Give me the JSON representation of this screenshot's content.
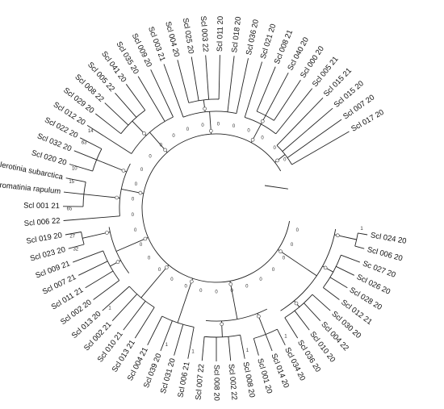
{
  "tree": {
    "tips": [
      {
        "label": "Scl 024 20",
        "support": "1"
      },
      {
        "label": "Scl 006 20",
        "support": ""
      },
      {
        "label": "Sc 027 20",
        "support": ""
      },
      {
        "label": "Scl 026 20",
        "support": ""
      },
      {
        "label": "Scl 028 20",
        "support": ""
      },
      {
        "label": "Scl 012 21",
        "support": ""
      },
      {
        "label": "Scl 030 20",
        "support": ""
      },
      {
        "label": "Scl 004 22",
        "support": ""
      },
      {
        "label": "Scl 010 20",
        "support": ""
      },
      {
        "label": "Scl 036 20",
        "support": ""
      },
      {
        "label": "Scl 034 20",
        "support": "1"
      },
      {
        "label": "Scl 014 20",
        "support": ""
      },
      {
        "label": "Scl 001 20",
        "support": ""
      },
      {
        "label": "Scl 008 20",
        "support": "1"
      },
      {
        "label": "Scl 002 22",
        "support": ""
      },
      {
        "label": "Scl 008 20",
        "support": ""
      },
      {
        "label": "Scl 007 22",
        "support": ""
      },
      {
        "label": "Scl 006 21",
        "support": "1"
      },
      {
        "label": "Scl 031 20",
        "support": ""
      },
      {
        "label": "Scl 039 20",
        "support": "1"
      },
      {
        "label": "Scl 004 21",
        "support": ""
      },
      {
        "label": "Scl 013 21",
        "support": ""
      },
      {
        "label": "Scl 010 21",
        "support": ""
      },
      {
        "label": "Scl 002 21",
        "support": ""
      },
      {
        "label": "Scl 013 20",
        "support": "1"
      },
      {
        "label": "Scl 002 20",
        "support": ""
      },
      {
        "label": "Scl 011 21",
        "support": ""
      },
      {
        "label": "Scl 007 21",
        "support": ""
      },
      {
        "label": "Scl 009 21",
        "support": ""
      },
      {
        "label": "Scl 023 20",
        "support": "32"
      },
      {
        "label": "Scl 019 20",
        "support": "27"
      },
      {
        "label": "Scl 006 22",
        "support": ""
      },
      {
        "label": "Scl 001 21",
        "support": "65"
      },
      {
        "label": "Stromatinia rapulum",
        "support": ""
      },
      {
        "label": "Sclerotinia subarctica",
        "support": "15"
      },
      {
        "label": "Scl 020 20",
        "support": "10"
      },
      {
        "label": "Scl 032 20",
        "support": ""
      },
      {
        "label": "Scl 022 20",
        "support": "63"
      },
      {
        "label": "Scl 012 20",
        "support": "14"
      },
      {
        "label": "Scl 029 20",
        "support": ""
      },
      {
        "label": "Scl 008 22",
        "support": ""
      },
      {
        "label": "Scl 005 22",
        "support": ""
      },
      {
        "label": "Scl 041 20",
        "support": ""
      },
      {
        "label": "Scl 035 20",
        "support": ""
      },
      {
        "label": "Scl 009 20",
        "support": ""
      },
      {
        "label": "Scl 003 21",
        "support": ""
      },
      {
        "label": "Scl 004 20",
        "support": ""
      },
      {
        "label": "Scl 025 20",
        "support": ""
      },
      {
        "label": "Scl 003 22",
        "support": ""
      },
      {
        "label": "Scl 011 20",
        "support": ""
      },
      {
        "label": "Scl 018 20",
        "support": ""
      },
      {
        "label": "Scl 036 20",
        "support": ""
      },
      {
        "label": "Scl 021 20",
        "support": ""
      },
      {
        "label": "Scl 008 21",
        "support": ""
      },
      {
        "label": "Scl 040 20",
        "support": ""
      },
      {
        "label": "Scl 000 20",
        "support": ""
      },
      {
        "label": "Scl 005 21",
        "support": ""
      },
      {
        "label": "Scl 015 21",
        "support": ""
      },
      {
        "label": "Scl 015 20",
        "support": ""
      },
      {
        "label": "Scl 007 20",
        "support": ""
      },
      {
        "label": "Scl 017 20",
        "support": ""
      }
    ],
    "inner_support": [
      "0",
      "0",
      "0",
      "0",
      "0",
      "0",
      "0",
      "0",
      "0",
      "0",
      "0",
      "0",
      "0",
      "0",
      "0",
      "0",
      "0",
      "0",
      "0",
      "0",
      "0",
      "0",
      "0",
      "0",
      "0",
      "0",
      "0",
      "0",
      "0",
      "0"
    ]
  }
}
